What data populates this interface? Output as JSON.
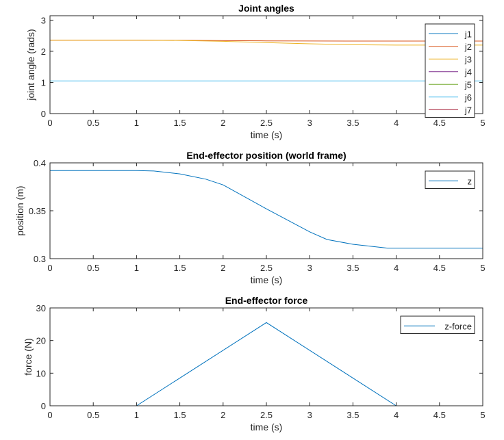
{
  "chart_data": [
    {
      "type": "line",
      "title": "Joint angles",
      "xlabel": "time (s)",
      "ylabel": "joint angle (rads)",
      "xlim": [
        0,
        5
      ],
      "ylim": [
        0,
        3.1416
      ],
      "xticks": [
        "0",
        "0.5",
        "1",
        "1.5",
        "2",
        "2.5",
        "3",
        "3.5",
        "4",
        "4.5",
        "5"
      ],
      "yticks": [
        "0",
        "1",
        "2",
        "3"
      ],
      "legend_position": "top-right",
      "x": [
        0,
        1,
        1.5,
        2,
        2.5,
        3,
        3.5,
        4,
        4.5,
        5
      ],
      "series": [
        {
          "name": "j1",
          "color": "#0072BD",
          "values": [
            0,
            0,
            0,
            0,
            0,
            0,
            0,
            0,
            0,
            0
          ]
        },
        {
          "name": "j2",
          "color": "#D95319",
          "values": [
            2.356,
            2.356,
            2.352,
            2.343,
            2.335,
            2.33,
            2.328,
            2.328,
            2.328,
            2.328
          ]
        },
        {
          "name": "j3",
          "color": "#EDB120",
          "values": [
            2.356,
            2.356,
            2.348,
            2.32,
            2.28,
            2.24,
            2.21,
            2.2,
            2.2,
            2.2
          ]
        },
        {
          "name": "j4",
          "color": "#7E2F8E",
          "values": [
            0,
            0,
            0,
            0,
            0,
            0,
            0,
            0,
            0,
            0
          ]
        },
        {
          "name": "j5",
          "color": "#77AC30",
          "values": [
            3.1416,
            3.1416,
            3.1416,
            3.1416,
            3.1416,
            3.1416,
            3.1416,
            3.1416,
            3.1416,
            3.1416
          ]
        },
        {
          "name": "j6",
          "color": "#4DBEEE",
          "values": [
            1.047,
            1.047,
            1.047,
            1.047,
            1.047,
            1.047,
            1.047,
            1.047,
            1.047,
            1.047
          ]
        },
        {
          "name": "j7",
          "color": "#A2142F",
          "values": [
            0,
            0,
            0,
            0,
            0,
            0,
            0,
            0,
            0,
            0
          ]
        }
      ]
    },
    {
      "type": "line",
      "title": "End-effector position (world frame)",
      "xlabel": "time (s)",
      "ylabel": "position (m)",
      "xlim": [
        0,
        5
      ],
      "ylim": [
        0.3,
        0.4
      ],
      "xticks": [
        "0",
        "0.5",
        "1",
        "1.5",
        "2",
        "2.5",
        "3",
        "3.5",
        "4",
        "4.5",
        "5"
      ],
      "yticks": [
        "0.3",
        "0.35",
        "0.4"
      ],
      "legend_position": "top-right",
      "x": [
        0,
        1,
        1.2,
        1.5,
        1.8,
        2,
        2.5,
        3,
        3.2,
        3.5,
        3.9,
        5
      ],
      "series": [
        {
          "name": "z",
          "color": "#0072BD",
          "values": [
            0.392,
            0.392,
            0.3915,
            0.3885,
            0.383,
            0.377,
            0.352,
            0.328,
            0.32,
            0.315,
            0.311,
            0.311
          ]
        }
      ]
    },
    {
      "type": "line",
      "title": "End-effector force",
      "xlabel": "time (s)",
      "ylabel": "force (N)",
      "xlim": [
        0,
        5
      ],
      "ylim": [
        0,
        30
      ],
      "xticks": [
        "0",
        "0.5",
        "1",
        "1.5",
        "2",
        "2.5",
        "3",
        "3.5",
        "4",
        "4.5",
        "5"
      ],
      "yticks": [
        "0",
        "10",
        "20",
        "30"
      ],
      "legend_position": "top-right",
      "x": [
        0,
        1,
        2.5,
        4,
        5
      ],
      "series": [
        {
          "name": "z-force",
          "color": "#0072BD",
          "values": [
            0,
            0,
            25.5,
            0,
            0
          ]
        }
      ]
    }
  ]
}
